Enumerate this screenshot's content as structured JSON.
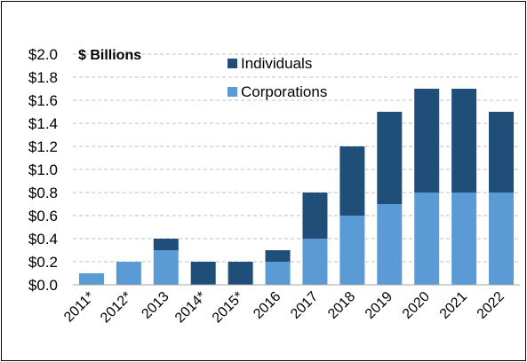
{
  "chart_data": {
    "type": "bar",
    "stacked": true,
    "title": "",
    "unit_label": "$ Billions",
    "categories": [
      "2011*",
      "2012*",
      "2013",
      "2014*",
      "2015*",
      "2016",
      "2017",
      "2018",
      "2019",
      "2020",
      "2021",
      "2022"
    ],
    "series": [
      {
        "name": "Corporations",
        "color": "#5b9bd5",
        "values": [
          0.1,
          0.2,
          0.3,
          0.0,
          0.0,
          0.2,
          0.4,
          0.6,
          0.7,
          0.8,
          0.8,
          0.8
        ]
      },
      {
        "name": "Individuals",
        "color": "#1f4e79",
        "values": [
          0.0,
          0.0,
          0.1,
          0.2,
          0.2,
          0.1,
          0.4,
          0.6,
          0.8,
          0.9,
          0.9,
          0.7
        ]
      }
    ],
    "ylim": [
      0,
      2.0
    ],
    "yticks": [
      "$0.0",
      "$0.2",
      "$0.4",
      "$0.6",
      "$0.8",
      "$1.0",
      "$1.2",
      "$1.4",
      "$1.6",
      "$1.8",
      "$2.0"
    ],
    "grid": true,
    "legend": {
      "placement": "top-center",
      "entries": [
        "Individuals",
        "Corporations"
      ]
    }
  }
}
